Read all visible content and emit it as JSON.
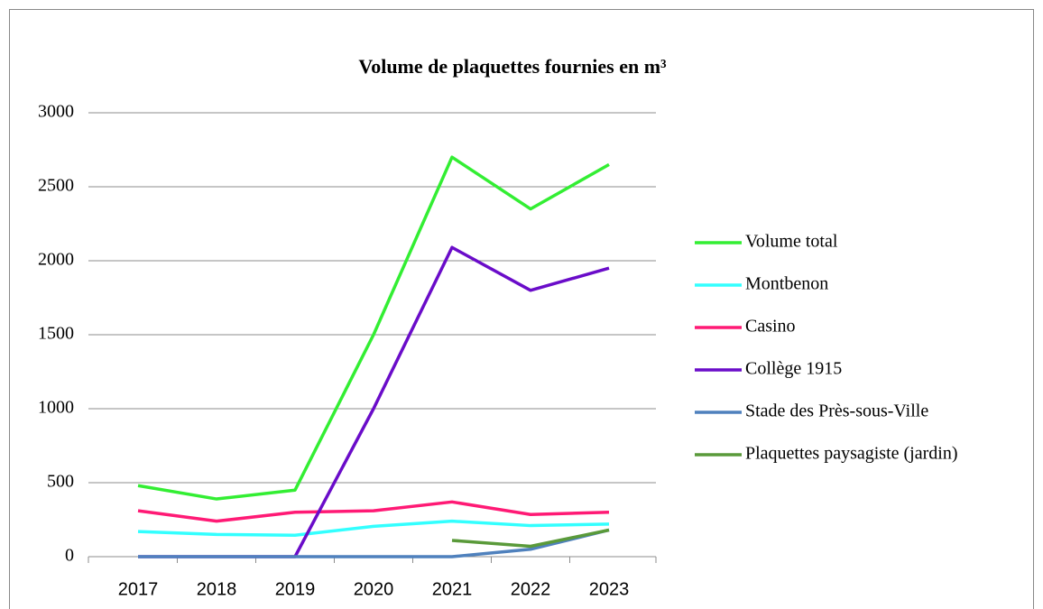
{
  "chart_data": {
    "type": "line",
    "title": "Volume de plaquettes fournies en m³",
    "categories": [
      "2017",
      "2018",
      "2019",
      "2020",
      "2021",
      "2022",
      "2023"
    ],
    "series": [
      {
        "name": "Volume total",
        "color": "#33ee33",
        "values": [
          480,
          390,
          450,
          1500,
          2700,
          2350,
          2650
        ]
      },
      {
        "name": "Montbenon",
        "color": "#33ffff",
        "values": [
          170,
          150,
          145,
          205,
          240,
          210,
          220
        ]
      },
      {
        "name": "Casino",
        "color": "#ff1a75",
        "values": [
          310,
          240,
          300,
          310,
          370,
          285,
          300
        ]
      },
      {
        "name": "Collège 1915",
        "color": "#6a0cc9",
        "values": [
          0,
          0,
          0,
          1000,
          2090,
          1800,
          1950
        ]
      },
      {
        "name": "Stade des Près-sous-Ville",
        "color": "#4f81bd",
        "values": [
          0,
          0,
          0,
          0,
          0,
          50,
          180
        ]
      },
      {
        "name": "Plaquettes paysagiste (jardin)",
        "color": "#5a9a3a",
        "values": [
          null,
          null,
          null,
          null,
          110,
          70,
          180
        ]
      }
    ],
    "ylim": [
      0,
      3000
    ],
    "yticks": [
      0,
      500,
      1000,
      1500,
      2000,
      2500,
      3000
    ],
    "grid": true,
    "legend": "right"
  }
}
